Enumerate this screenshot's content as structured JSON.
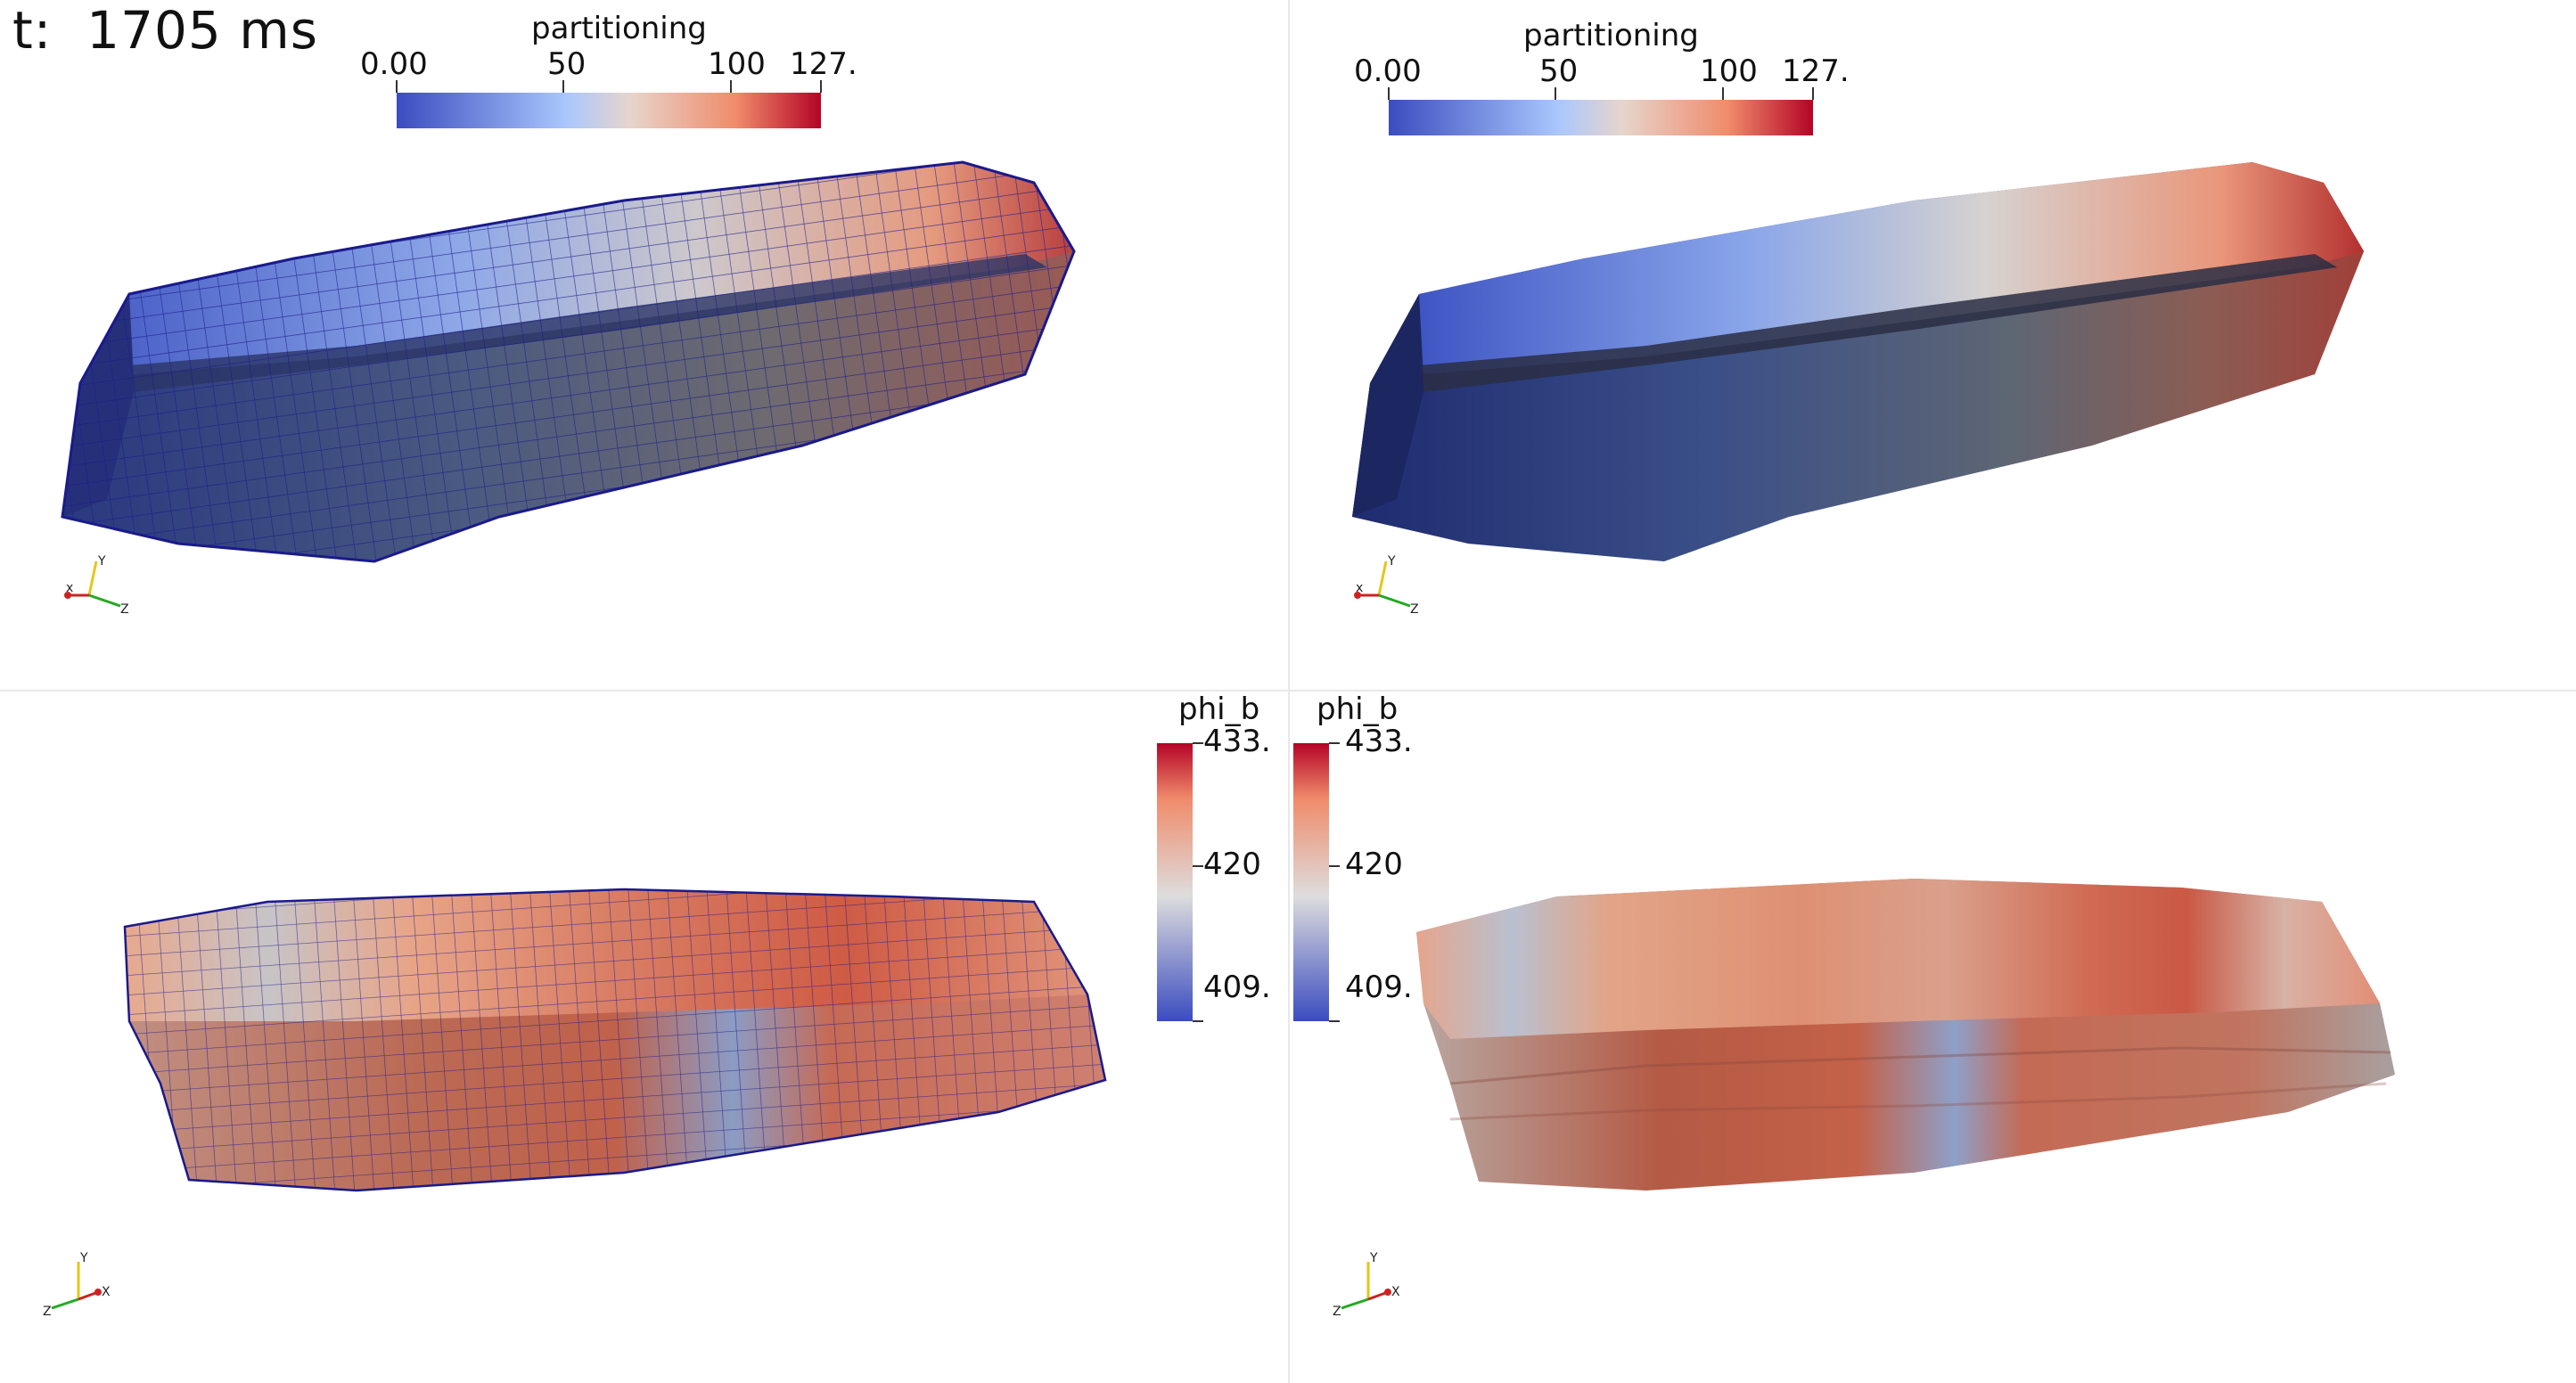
{
  "time": {
    "label": "t:",
    "value": "1705 ms"
  },
  "partitioning_bar": {
    "title": "partitioning",
    "ticks": [
      "0.00",
      "50",
      "100",
      "127."
    ],
    "range": [
      0,
      127
    ]
  },
  "phi_b_bar": {
    "title": "phi_b",
    "ticks": [
      "433.",
      "420",
      "409."
    ],
    "range": [
      409,
      433
    ]
  },
  "axes": {
    "x": "x",
    "y": "Y",
    "z": "Z"
  },
  "colors": {
    "cool": "#3b4cc0",
    "neutral": "#dddddd",
    "warm": "#b40426",
    "mesh_edge": "#1a1a8c"
  }
}
